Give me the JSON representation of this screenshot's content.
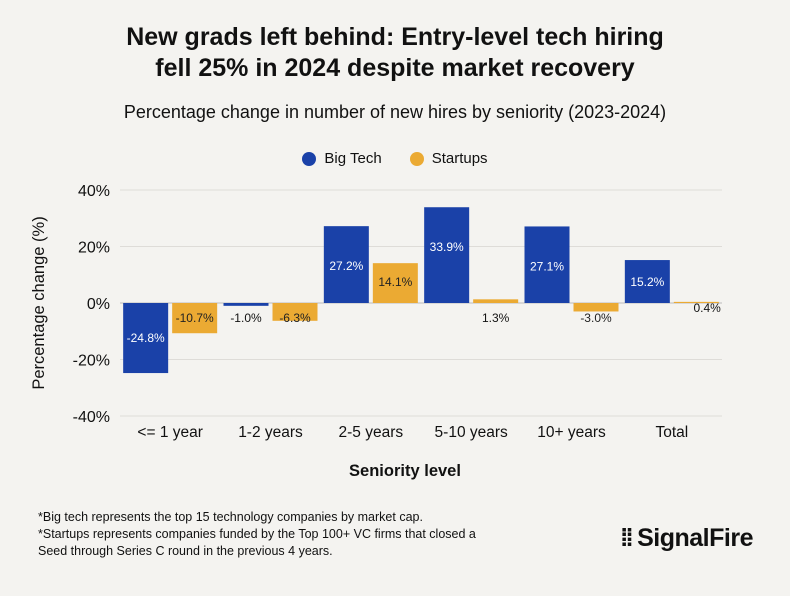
{
  "title_line1": "New grads left behind: Entry-level tech hiring",
  "title_line2": "fell 25% in 2024 despite market recovery",
  "footnotes": [
    "*Big tech represents the top 15 technology companies by market cap.",
    "*Startups represents companies funded by the Top 100+ VC firms that closed a",
    "Seed through Series C round in the previous 4 years."
  ],
  "logo": "SignalFire",
  "chart_data": {
    "type": "bar",
    "title": "Percentage change in number of new hires by seniority (2023-2024)",
    "xlabel": "Seniority level",
    "ylabel": "Percentage change (%)",
    "categories": [
      "<= 1 year",
      "1-2 years",
      "2-5 years",
      "5-10 years",
      "10+ years",
      "Total"
    ],
    "series": [
      {
        "name": "Big Tech",
        "color": "#1a41a8",
        "values": [
          -24.8,
          -1.0,
          27.2,
          33.9,
          27.1,
          15.2
        ],
        "labels": [
          "-24.8%",
          "-1.0%",
          "27.2%",
          "33.9%",
          "27.1%",
          "15.2%"
        ]
      },
      {
        "name": "Startups",
        "color": "#ebaa33",
        "values": [
          -10.7,
          -6.3,
          14.1,
          1.3,
          -3.0,
          0.4
        ],
        "labels": [
          "-10.7%",
          "-6.3%",
          "14.1%",
          "1.3%",
          "-3.0%",
          "0.4%"
        ]
      }
    ],
    "ylim": [
      -40,
      40
    ],
    "yticks": [
      "-40%",
      "-20%",
      "0%",
      "20%",
      "40%"
    ],
    "ytick_values": [
      -40,
      -20,
      0,
      20,
      40
    ],
    "grid": true,
    "legend": "top-center"
  }
}
